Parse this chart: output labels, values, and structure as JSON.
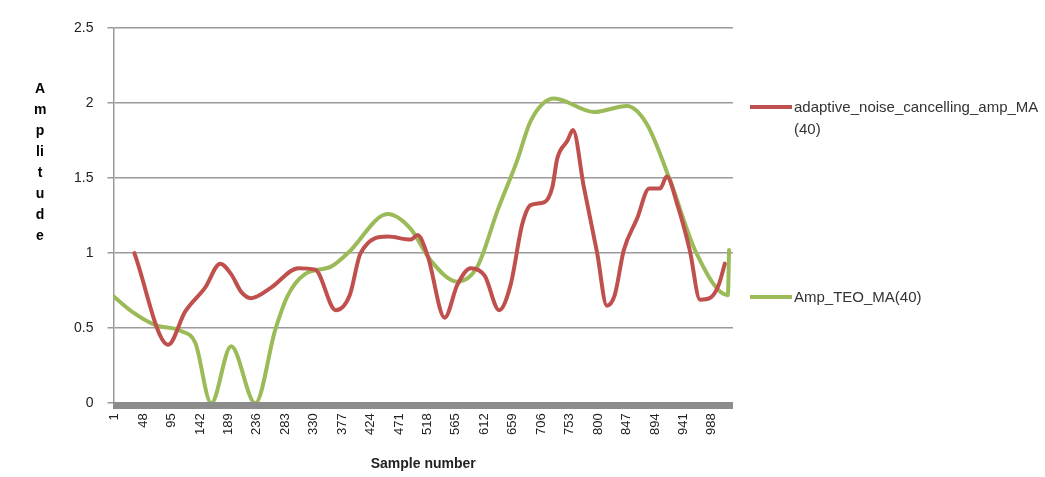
{
  "chart_data": {
    "type": "line",
    "xlabel": "Sample number",
    "ylabel": "Amplitude",
    "xlim": [
      0.5,
      1024.5
    ],
    "xticks": [
      1,
      48,
      95,
      142,
      189,
      236,
      283,
      330,
      377,
      424,
      471,
      518,
      565,
      612,
      659,
      706,
      753,
      800,
      847,
      894,
      941,
      988
    ],
    "ylim": [
      0,
      2.5
    ],
    "yticks": [
      0,
      0.5,
      1,
      1.5,
      2,
      2.5
    ],
    "grid": "y",
    "legend": "right",
    "marker": "none",
    "line_style": "solid",
    "series": [
      {
        "name": "adaptive_noise_cancelling_amp_MA(40)",
        "color": "#c0504d",
        "x": [
          35,
          91,
          119,
          152,
          177,
          195,
          212,
          228,
          261,
          306,
          334,
          368,
          391,
          409,
          454,
          492,
          503,
          520,
          548,
          569,
          591,
          614,
          638,
          657,
          676,
          690,
          713,
          726,
          734,
          751,
          760,
          778,
          800,
          816,
          829,
          844,
          866,
          886,
          904,
          915,
          932,
          953,
          970,
          986,
          1001,
          1011
        ],
        "values": [
          1.0,
          0.39,
          0.61,
          0.77,
          0.93,
          0.86,
          0.74,
          0.7,
          0.77,
          0.9,
          0.89,
          0.62,
          0.72,
          1.0,
          1.11,
          1.09,
          1.12,
          0.98,
          0.57,
          0.79,
          0.9,
          0.85,
          0.62,
          0.79,
          1.19,
          1.32,
          1.34,
          1.44,
          1.63,
          1.75,
          1.82,
          1.44,
          1.0,
          0.65,
          0.72,
          1.02,
          1.23,
          1.43,
          1.43,
          1.51,
          1.33,
          1.02,
          0.69,
          0.7,
          0.79,
          0.93
        ]
      },
      {
        "name": "Amp_TEO_MA(40)",
        "color": "#9bbb59",
        "x": [
          1,
          31,
          70,
          113,
          136,
          162,
          195,
          235,
          268,
          289,
          317,
          360,
          388,
          454,
          492,
          525,
          569,
          602,
          635,
          668,
          690,
          729,
          795,
          849,
          882,
          920,
          964,
          1016,
          1018
        ],
        "values": [
          0.71,
          0.61,
          0.52,
          0.48,
          0.4,
          0,
          0.38,
          0,
          0.49,
          0.72,
          0.86,
          0.91,
          1.0,
          1.26,
          1.16,
          0.95,
          0.81,
          0.91,
          1.28,
          1.62,
          1.88,
          2.03,
          1.94,
          1.98,
          1.86,
          1.49,
          1.0,
          0.72,
          1.02
        ]
      }
    ]
  }
}
